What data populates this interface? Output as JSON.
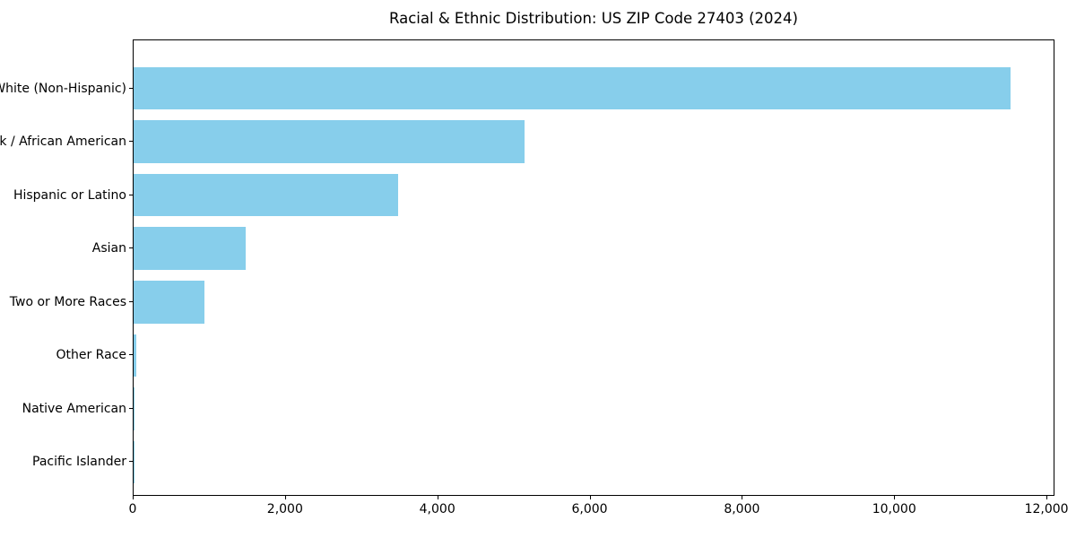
{
  "chart_data": {
    "type": "bar",
    "orientation": "horizontal",
    "title": "Racial & Ethnic Distribution: US ZIP Code 27403 (2024)",
    "xlabel": "",
    "ylabel": "",
    "categories": [
      "White (Non-Hispanic)",
      "Black / African American",
      "Hispanic or Latino",
      "Asian",
      "Two or More Races",
      "Other Race",
      "Native American",
      "Pacific Islander"
    ],
    "values": [
      11520,
      5135,
      3475,
      1470,
      930,
      30,
      15,
      5
    ],
    "xlim": [
      0,
      12105
    ],
    "x_ticks": [
      0,
      2000,
      4000,
      6000,
      8000,
      10000,
      12000
    ],
    "x_tick_labels": [
      "0",
      "2,000",
      "4,000",
      "6,000",
      "8,000",
      "10,000",
      "12,000"
    ],
    "bar_color": "#87CEEB",
    "axis_color": "#000000",
    "text_color": "#000000",
    "grid": false,
    "legend": "none"
  }
}
